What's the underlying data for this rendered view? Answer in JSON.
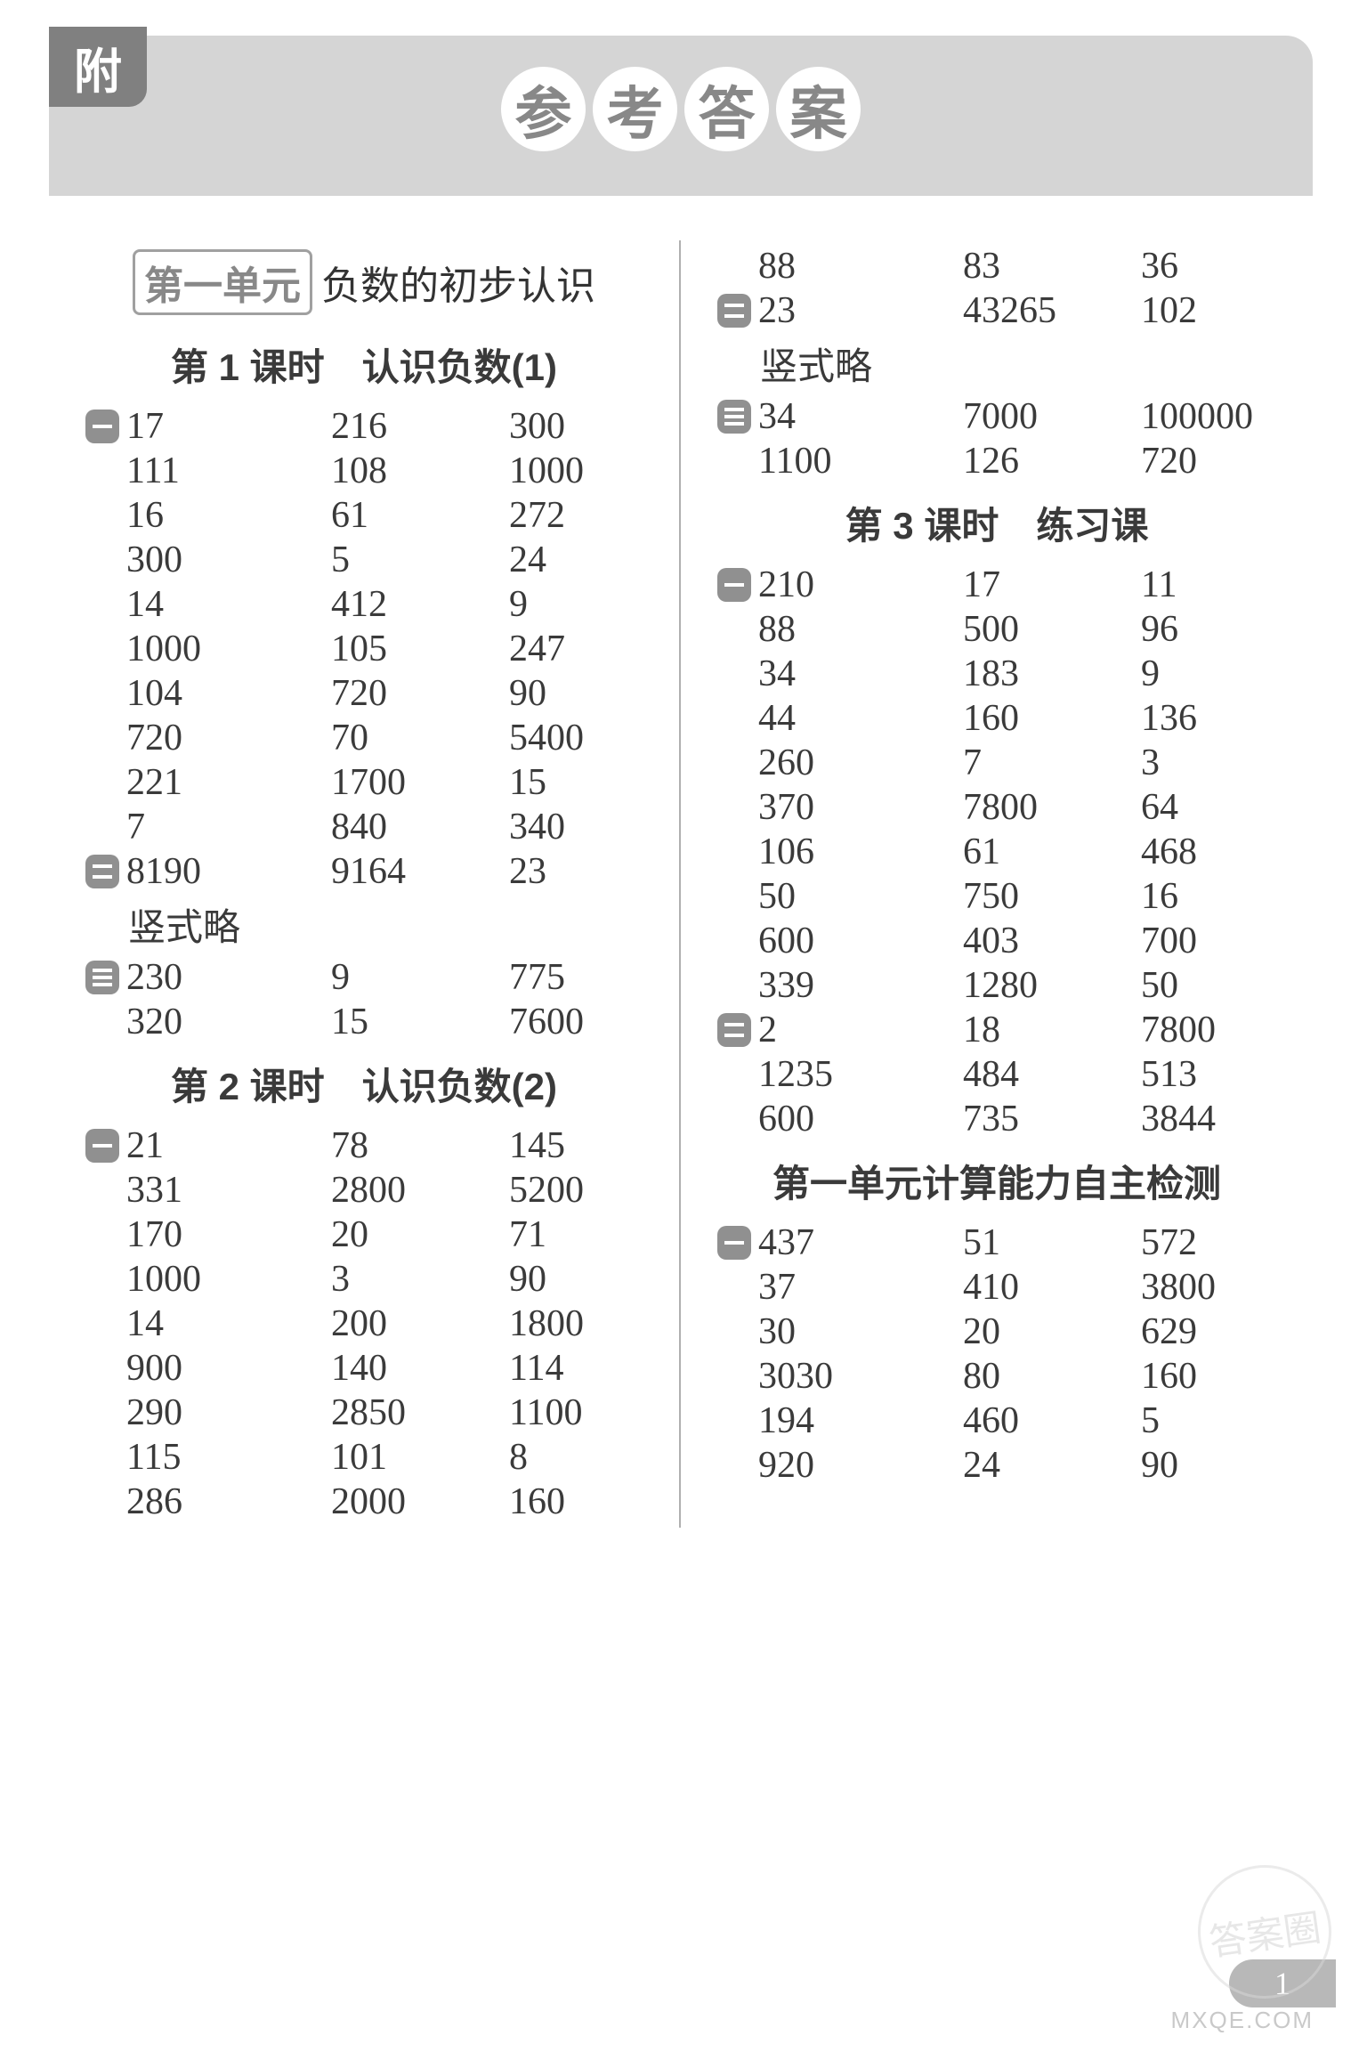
{
  "header": {
    "tab": "附",
    "title_chars": [
      "参",
      "考",
      "答",
      "案"
    ]
  },
  "page_number": "1",
  "watermark": "MXQE.COM",
  "stamp": "答案圈",
  "left": {
    "unit_badge": "第一单元",
    "unit_rest": "负数的初步认识",
    "sections": [
      {
        "title": "第 1 课时　认识负数(1)",
        "blocks": [
          {
            "marker": "single",
            "rows": [
              [
                "17",
                "216",
                "300"
              ],
              [
                "111",
                "108",
                "1000"
              ],
              [
                "16",
                "61",
                "272"
              ],
              [
                "300",
                "5",
                "24"
              ],
              [
                "14",
                "412",
                "9"
              ],
              [
                "1000",
                "105",
                "247"
              ],
              [
                "104",
                "720",
                "90"
              ],
              [
                "720",
                "70",
                "5400"
              ],
              [
                "221",
                "1700",
                "15"
              ],
              [
                "7",
                "840",
                "340"
              ]
            ]
          },
          {
            "marker": "double",
            "rows": [
              [
                "8190",
                "9164",
                "23"
              ]
            ],
            "tail_text": "竖式略"
          },
          {
            "marker": "triple",
            "rows": [
              [
                "230",
                "9",
                "775"
              ],
              [
                "320",
                "15",
                "7600"
              ]
            ]
          }
        ]
      },
      {
        "title": "第 2 课时　认识负数(2)",
        "blocks": [
          {
            "marker": "single",
            "rows": [
              [
                "21",
                "78",
                "145"
              ],
              [
                "331",
                "2800",
                "5200"
              ],
              [
                "170",
                "20",
                "71"
              ],
              [
                "1000",
                "3",
                "90"
              ],
              [
                "14",
                "200",
                "1800"
              ],
              [
                "900",
                "140",
                "114"
              ],
              [
                "290",
                "2850",
                "1100"
              ],
              [
                "115",
                "101",
                "8"
              ],
              [
                "286",
                "2000",
                "160"
              ]
            ]
          }
        ]
      }
    ]
  },
  "right": {
    "pre_rows": [
      {
        "marker": "",
        "row": [
          "88",
          "83",
          "36"
        ]
      },
      {
        "marker": "double",
        "row": [
          "23",
          "43265",
          "102"
        ],
        "tail_text": "竖式略"
      },
      {
        "marker": "triple",
        "row": [
          "34",
          "7000",
          "100000"
        ]
      },
      {
        "marker": "",
        "row": [
          "1100",
          "126",
          "720"
        ]
      }
    ],
    "sections": [
      {
        "title": "第 3 课时　练习课",
        "blocks": [
          {
            "marker": "single",
            "rows": [
              [
                "210",
                "17",
                "11"
              ],
              [
                "88",
                "500",
                "96"
              ],
              [
                "34",
                "183",
                "9"
              ],
              [
                "44",
                "160",
                "136"
              ],
              [
                "260",
                "7",
                "3"
              ],
              [
                "370",
                "7800",
                "64"
              ],
              [
                "106",
                "61",
                "468"
              ],
              [
                "50",
                "750",
                "16"
              ],
              [
                "600",
                "403",
                "700"
              ],
              [
                "339",
                "1280",
                "50"
              ]
            ]
          },
          {
            "marker": "double",
            "rows": [
              [
                "2",
                "18",
                "7800"
              ],
              [
                "1235",
                "484",
                "513"
              ],
              [
                "600",
                "735",
                "3844"
              ]
            ]
          }
        ]
      },
      {
        "title": "第一单元计算能力自主检测",
        "blocks": [
          {
            "marker": "single",
            "rows": [
              [
                "437",
                "51",
                "572"
              ],
              [
                "37",
                "410",
                "3800"
              ],
              [
                "30",
                "20",
                "629"
              ],
              [
                "3030",
                "80",
                "160"
              ],
              [
                "194",
                "460",
                "5"
              ],
              [
                "920",
                "24",
                "90"
              ]
            ]
          }
        ]
      }
    ]
  }
}
